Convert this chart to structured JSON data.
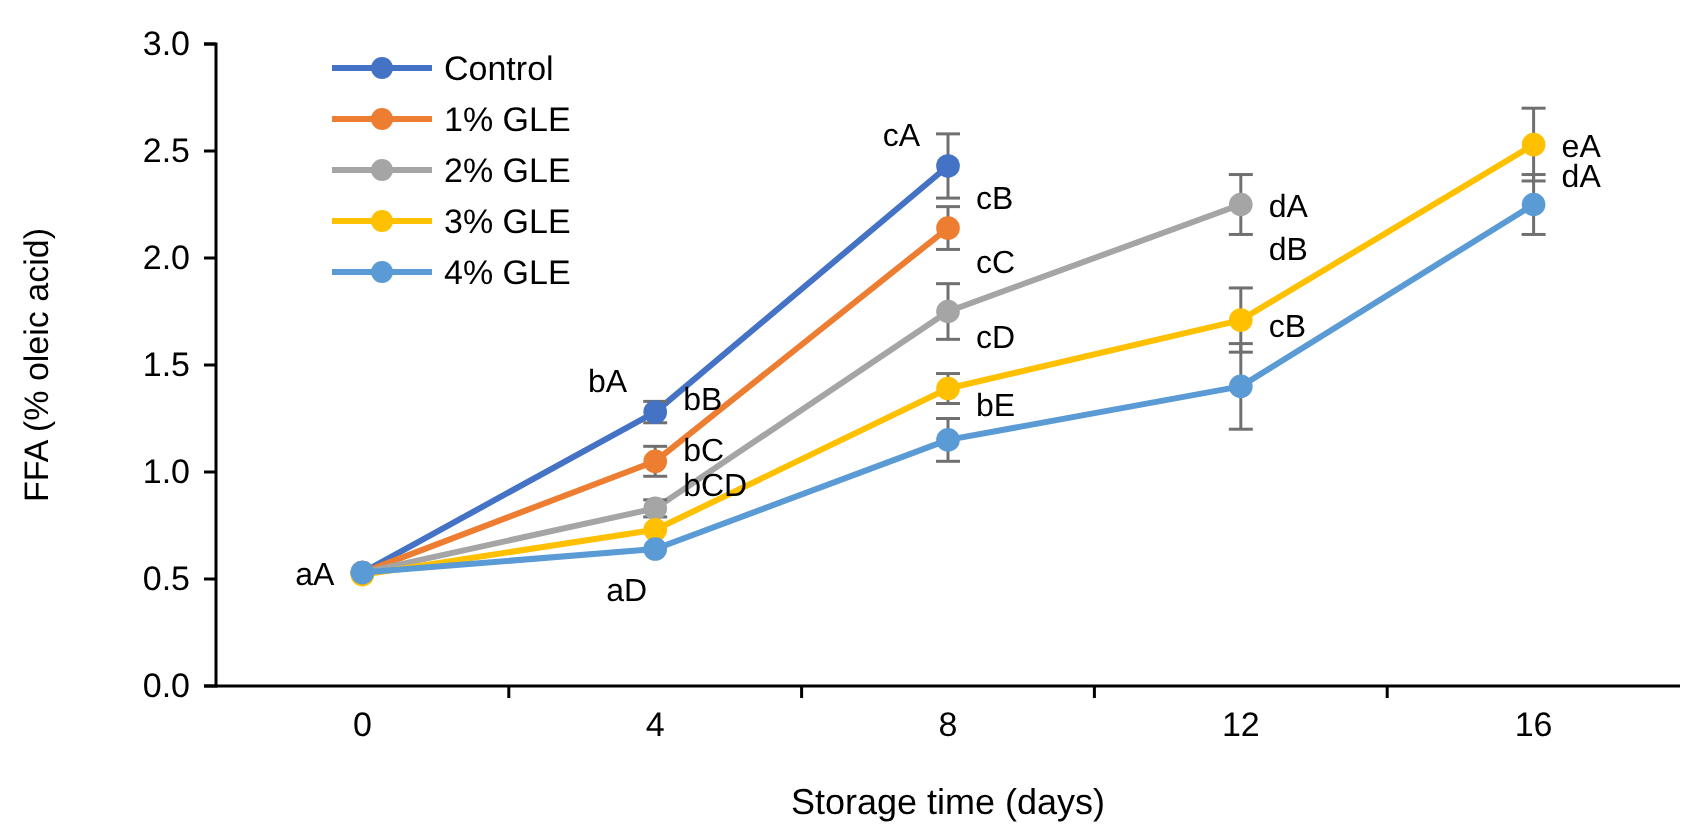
{
  "chart_data": {
    "type": "line",
    "xlabel": "Storage time (days)",
    "ylabel": "FFA (% oleic acid)",
    "categories": [
      "0",
      "4",
      "8",
      "12",
      "16"
    ],
    "ylim": [
      0,
      3
    ],
    "yticks": [
      {
        "value": 0,
        "label": "0.0"
      },
      {
        "value": 0.5,
        "label": "0.5"
      },
      {
        "value": 1,
        "label": "1.0"
      },
      {
        "value": 1.5,
        "label": "1.5"
      },
      {
        "value": 2,
        "label": "2.0"
      },
      {
        "value": 2.5,
        "label": "2.5"
      },
      {
        "value": 3,
        "label": "3.0"
      }
    ],
    "marker": "circle",
    "grid": false,
    "legend": "top left",
    "series": [
      {
        "name": "Control",
        "color": "#4472c4",
        "values": [
          0.53,
          1.28,
          2.43,
          null,
          null
        ],
        "errors": [
          null,
          0.05,
          0.15,
          null,
          null
        ]
      },
      {
        "name": "1% GLE",
        "color": "#ed7d31",
        "values": [
          0.53,
          1.05,
          2.14,
          null,
          null
        ],
        "errors": [
          null,
          0.07,
          0.1,
          null,
          null
        ]
      },
      {
        "name": "2% GLE",
        "color": "#a5a5a5",
        "values": [
          0.53,
          0.83,
          1.75,
          2.25,
          null
        ],
        "errors": [
          null,
          0.04,
          0.13,
          0.14,
          null
        ]
      },
      {
        "name": "3% GLE",
        "color": "#ffc000",
        "values": [
          0.52,
          0.73,
          1.39,
          1.71,
          2.53
        ],
        "errors": [
          null,
          null,
          0.07,
          0.15,
          0.17
        ]
      },
      {
        "name": "4% GLE",
        "color": "#5b9bd5",
        "values": [
          0.53,
          0.64,
          1.15,
          1.4,
          2.25
        ],
        "errors": [
          null,
          null,
          0.1,
          0.2,
          0.14
        ]
      }
    ],
    "annotations": [
      {
        "text": "aA",
        "x": "0",
        "y": 0.53
      },
      {
        "text": "bA",
        "x": "4",
        "y": 1.28
      },
      {
        "text": "bB",
        "x": "4",
        "y": 1.05
      },
      {
        "text": "bC",
        "x": "4",
        "y": 0.83
      },
      {
        "text": "bCD",
        "x": "4",
        "y": 0.73
      },
      {
        "text": "aD",
        "x": "4",
        "y": 0.64
      },
      {
        "text": "cA",
        "x": "8",
        "y": 2.43
      },
      {
        "text": "cB",
        "x": "8",
        "y": 2.14
      },
      {
        "text": "cC",
        "x": "8",
        "y": 1.75
      },
      {
        "text": "cD",
        "x": "8",
        "y": 1.39
      },
      {
        "text": "bE",
        "x": "8",
        "y": 1.15
      },
      {
        "text": "dA",
        "x": "12",
        "y": 2.25
      },
      {
        "text": "dB",
        "x": "12",
        "y": 1.71
      },
      {
        "text": "cB",
        "x": "12",
        "y": 1.4
      },
      {
        "text": "eA",
        "x": "16",
        "y": 2.53
      },
      {
        "text": "dA",
        "x": "16",
        "y": 2.25
      }
    ]
  }
}
